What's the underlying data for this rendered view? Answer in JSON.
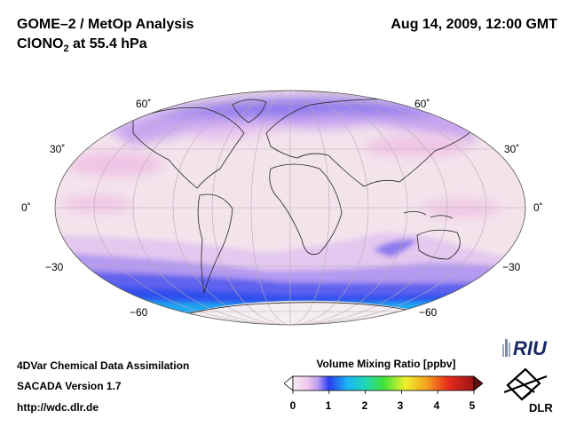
{
  "header": {
    "title": "GOME–2 / MetOp Analysis",
    "species_main": "ClONO",
    "species_sub": "2",
    "species_rest": " at 55.4 hPa",
    "datetime": "Aug 14, 2009, 12:00 GMT"
  },
  "map": {
    "lat_labels": [
      "60˚",
      "30˚",
      "0˚",
      "−30",
      "−60"
    ],
    "colors": {
      "background": "#f3e4ec",
      "pink": "#f0c4e6",
      "purple_light": "#c9a6f0",
      "purple": "#8f7aee",
      "blue": "#2e50ee",
      "cyan": "#1aa8f2",
      "antarctica": "#f4eef2"
    }
  },
  "footer": {
    "line1": "4DVar Chemical Data Assimilation",
    "line2": "SACADA Version 1.7",
    "line3": "http://wdc.dlr.de"
  },
  "colorbar": {
    "title": "Volume Mixing Ratio [ppbv]",
    "ticks": [
      "0",
      "1",
      "2",
      "3",
      "4",
      "5"
    ],
    "tick_values": [
      0,
      1,
      2,
      3,
      4,
      5
    ],
    "range": [
      0,
      5
    ]
  },
  "logos": {
    "riu_text": "RIU",
    "dlr_text": "DLR"
  }
}
